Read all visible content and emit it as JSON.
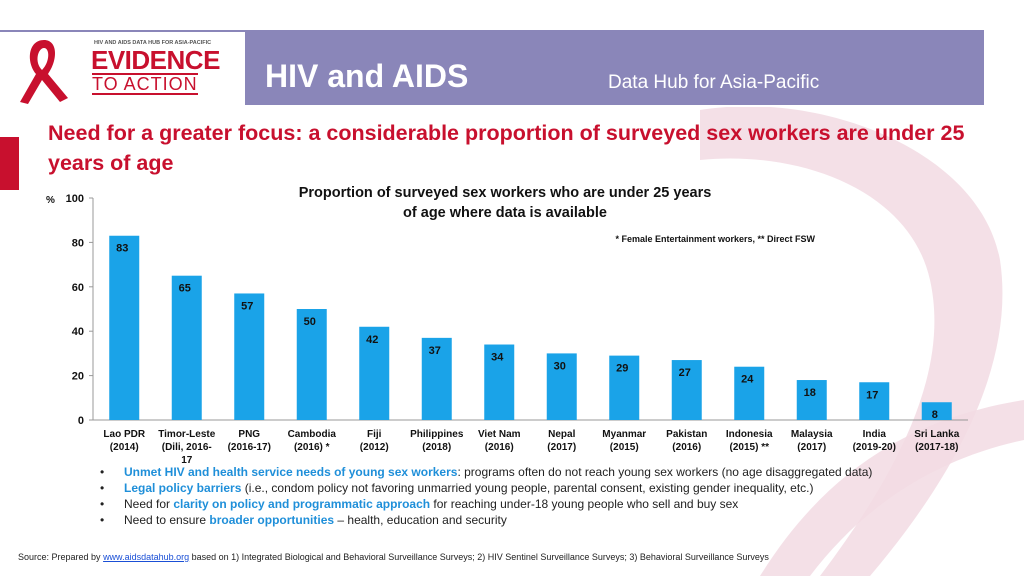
{
  "header": {
    "logo_hub_text": "HIV AND AIDS DATA HUB FOR ASIA-PACIFIC",
    "logo_evidence": "EVIDENCE",
    "logo_action": "TO ACTION",
    "title": "HIV and AIDS",
    "subtitle": "Data Hub for Asia-Pacific"
  },
  "headline": "Need for a greater focus: a considerable proportion of  surveyed sex workers are under 25 years of age",
  "chart_data": {
    "type": "bar",
    "title": "Proportion of surveyed sex workers who are under 25 years of age where data is available",
    "title_lines": [
      "Proportion of surveyed sex workers who are under 25 years",
      "of age where data is available"
    ],
    "note": "* Female Entertainment workers,    ** Direct FSW",
    "ylabel": "%",
    "xlabel": "",
    "ylim": [
      0,
      100
    ],
    "yticks": [
      0,
      20,
      40,
      60,
      80,
      100
    ],
    "grid": false,
    "bar_color": "#1aa3e8",
    "categories": [
      {
        "line1": "Lao PDR",
        "line2": "(2014)",
        "value": 83
      },
      {
        "line1": "Timor-Leste",
        "line2": "(Dili, 2016-",
        "line3": "17",
        "value": 65
      },
      {
        "line1": "PNG",
        "line2": "(2016-17)",
        "value": 57
      },
      {
        "line1": "Cambodia",
        "line2": "(2016) *",
        "value": 50
      },
      {
        "line1": "Fiji",
        "line2": "(2012)",
        "value": 42
      },
      {
        "line1": "Philippines",
        "line2": "(2018)",
        "value": 37
      },
      {
        "line1": "Viet Nam",
        "line2": "(2016)",
        "value": 34
      },
      {
        "line1": "Nepal",
        "line2": "(2017)",
        "value": 30
      },
      {
        "line1": "Myanmar",
        "line2": "(2015)",
        "value": 29
      },
      {
        "line1": "Pakistan",
        "line2": "(2016)",
        "value": 27
      },
      {
        "line1": "Indonesia",
        "line2": "(2015) **",
        "value": 24
      },
      {
        "line1": "Malaysia",
        "line2": "(2017)",
        "value": 18
      },
      {
        "line1": "India",
        "line2": "(2019-20)",
        "value": 17
      },
      {
        "line1": "Sri Lanka",
        "line2": "(2017-18)",
        "value": 8
      }
    ]
  },
  "bullets": [
    {
      "hl": "Unmet HIV and health service needs of young sex workers",
      "pre": "",
      "post": ": programs often do not reach young sex workers (no age disaggregated data)"
    },
    {
      "hl": "Legal policy barriers",
      "pre": "",
      "post": " (i.e., condom policy not favoring unmarried young people, parental consent, existing gender inequality, etc.)"
    },
    {
      "hl": "clarity on policy and programmatic approach",
      "pre": "Need for ",
      "post": " for reaching under-18 young people who sell and buy sex"
    },
    {
      "hl": "broader opportunities",
      "pre": "Need to ensure ",
      "post": "  – health, education and security"
    }
  ],
  "source": {
    "prefix": "Source: Prepared by ",
    "link": "www.aidsdatahub.org",
    "suffix": "  based on 1) Integrated Biological and Behavioral Surveillance Surveys; 2) HIV Sentinel Surveillance Surveys; 3) Behavioral Surveillance Surveys"
  },
  "colors": {
    "accent": "#c8102e",
    "header_bg": "#8a86b9",
    "bar": "#1aa3e8",
    "highlight": "#1f8fd9"
  }
}
